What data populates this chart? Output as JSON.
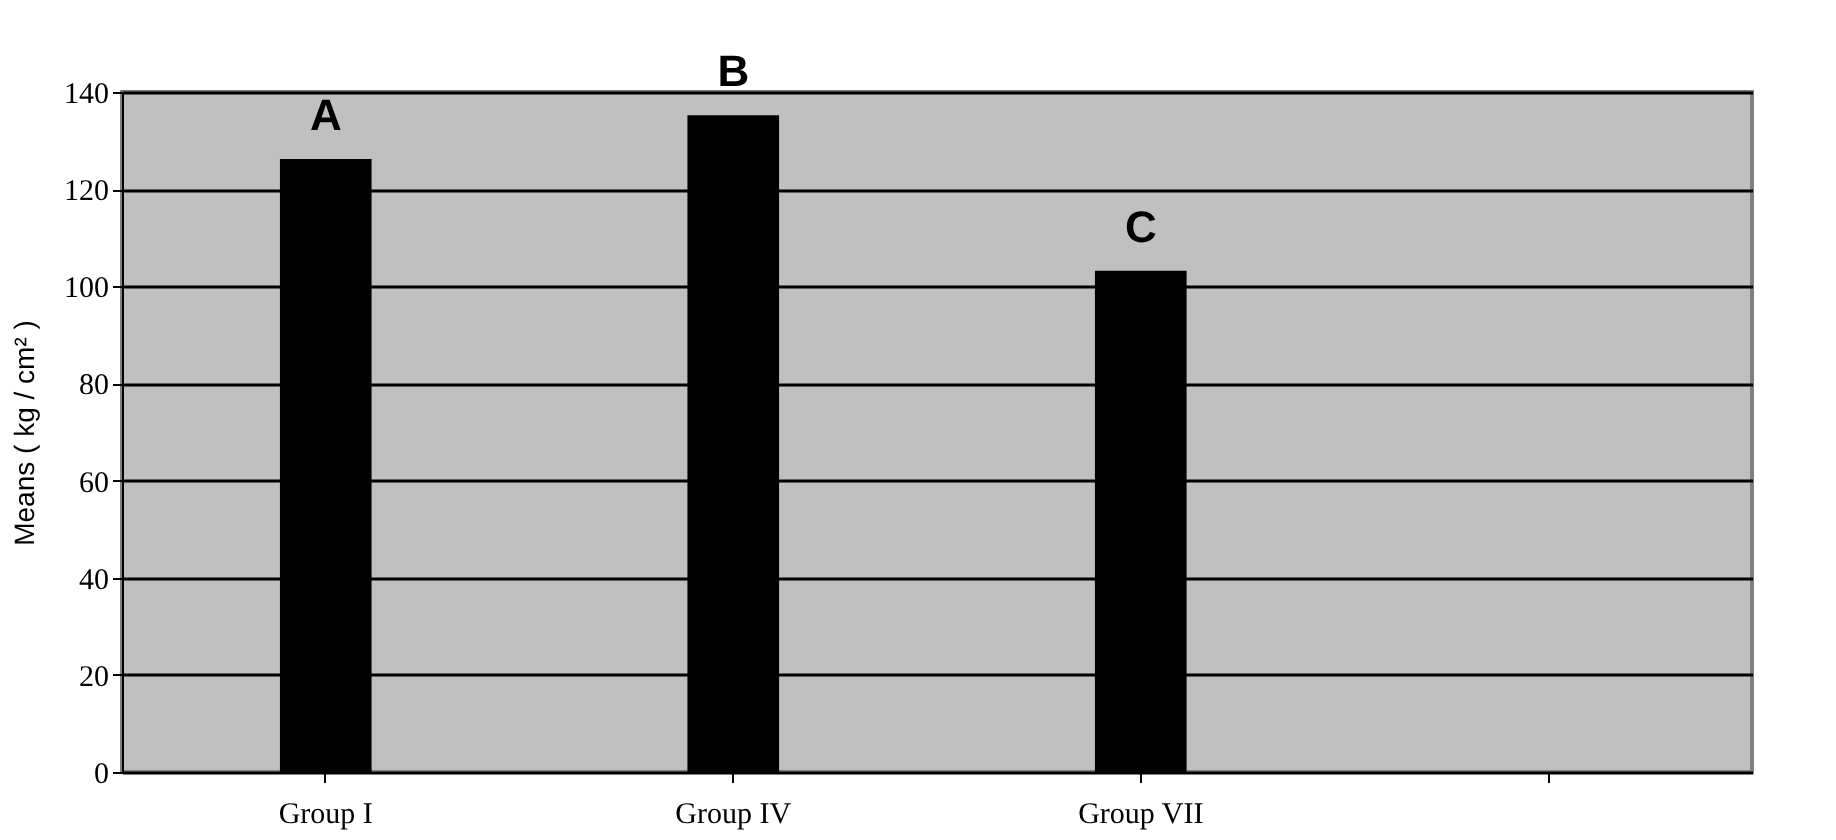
{
  "chart_data": {
    "type": "bar",
    "ylabel": "Means  ( kg / cm² )",
    "categories": [
      "Group I",
      "Group IV",
      "Group VII",
      null
    ],
    "values": [
      126,
      135,
      103,
      null
    ],
    "color": "#000000",
    "ylim": [
      0,
      140
    ],
    "yticks": [
      0,
      20,
      40,
      60,
      80,
      100,
      120,
      140
    ],
    "grid": "y",
    "annotations": [
      "A",
      "B",
      "C"
    ]
  }
}
